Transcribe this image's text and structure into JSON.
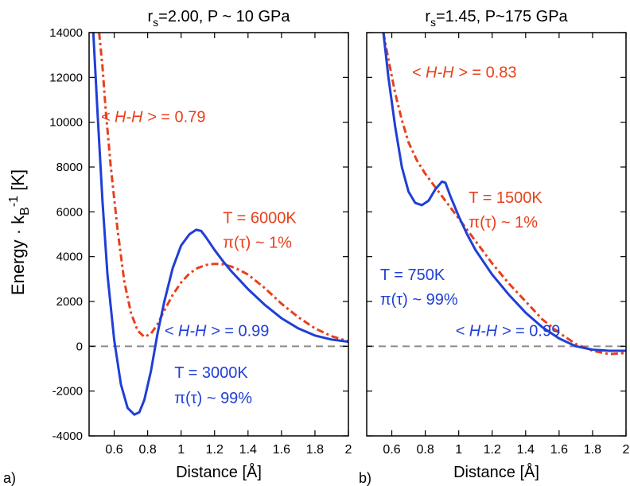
{
  "figure": {
    "ylabel": "Energy · kB-1 [K]",
    "hline_color": "#8a8a8a",
    "red": "#e8401c",
    "blue": "#1f3fd6"
  },
  "chart_data": [
    {
      "type": "line",
      "panel_label": "a)",
      "title_parts": [
        "r",
        "s",
        "=2.00, P ~ 10 GPa"
      ],
      "xlabel": "Distance [Å]",
      "xlim": [
        0.45,
        2.0
      ],
      "ylim": [
        -4000,
        14000
      ],
      "xticks": [
        0.6,
        0.8,
        1,
        1.2,
        1.4,
        1.6,
        1.8,
        2
      ],
      "xtick_labels": [
        "0.6",
        "0.8",
        "1",
        "1.2",
        "1.4",
        "1.6",
        "1.8",
        "2"
      ],
      "yticks": [
        -4000,
        -2000,
        0,
        2000,
        4000,
        6000,
        8000,
        10000,
        12000,
        14000
      ],
      "ytick_labels": [
        "-4000",
        "-2000",
        "0",
        "2000",
        "4000",
        "6000",
        "8000",
        "10000",
        "12000",
        "14000"
      ],
      "grid": false,
      "series": [
        {
          "style": "dash-dot",
          "color": "#e8401c",
          "x": [
            0.51,
            0.53,
            0.55,
            0.58,
            0.62,
            0.66,
            0.7,
            0.74,
            0.78,
            0.82,
            0.86,
            0.9,
            0.95,
            1.0,
            1.05,
            1.1,
            1.15,
            1.2,
            1.25,
            1.3,
            1.35,
            1.4,
            1.5,
            1.6,
            1.7,
            1.8,
            1.9,
            2.0
          ],
          "y": [
            14000,
            12500,
            10500,
            8000,
            5200,
            2900,
            1500,
            700,
            420,
            560,
            1000,
            1600,
            2300,
            2850,
            3250,
            3500,
            3630,
            3680,
            3660,
            3560,
            3400,
            3200,
            2600,
            1900,
            1300,
            800,
            450,
            220
          ]
        },
        {
          "style": "solid",
          "color": "#1f3fd6",
          "x": [
            0.475,
            0.5,
            0.53,
            0.56,
            0.6,
            0.64,
            0.68,
            0.72,
            0.75,
            0.78,
            0.82,
            0.86,
            0.9,
            0.95,
            1.0,
            1.05,
            1.09,
            1.12,
            1.15,
            1.2,
            1.25,
            1.3,
            1.35,
            1.4,
            1.5,
            1.6,
            1.7,
            1.8,
            1.9,
            2.0
          ],
          "y": [
            14000,
            10500,
            6500,
            3200,
            300,
            -1700,
            -2750,
            -3050,
            -2950,
            -2400,
            -1100,
            600,
            2000,
            3500,
            4500,
            5000,
            5200,
            5150,
            4850,
            4300,
            3800,
            3350,
            2950,
            2550,
            1850,
            1250,
            800,
            480,
            300,
            200
          ]
        }
      ],
      "annotations": [
        {
          "text": "< H-H > = 0.79",
          "color": "#e8401c",
          "x": 0.52,
          "y": 10000,
          "italic_part": "H-H"
        },
        {
          "text": "T = 6000K",
          "color": "#e8401c",
          "x": 1.25,
          "y": 5500
        },
        {
          "text": "π(τ) ~ 1%",
          "color": "#e8401c",
          "x": 1.25,
          "y": 4400
        },
        {
          "text": "< H-H > = 0.99",
          "color": "#1f3fd6",
          "x": 0.9,
          "y": 450,
          "italic_part": "H-H"
        },
        {
          "text": "T = 3000K",
          "color": "#1f3fd6",
          "x": 0.96,
          "y": -1400
        },
        {
          "text": "π(τ) ~ 99%",
          "color": "#1f3fd6",
          "x": 0.96,
          "y": -2550
        }
      ]
    },
    {
      "type": "line",
      "panel_label": "b)",
      "title_parts": [
        "r",
        "s",
        "=1.45, P~175 GPa"
      ],
      "xlabel": "Distance [Å]",
      "xlim": [
        0.45,
        2.0
      ],
      "ylim": [
        -4000,
        14000
      ],
      "xticks": [
        0.6,
        0.8,
        1,
        1.2,
        1.4,
        1.6,
        1.8,
        2
      ],
      "xtick_labels": [
        "0.6",
        "0.8",
        "1",
        "1.2",
        "1.4",
        "1.6",
        "1.8",
        "2"
      ],
      "yticks": [
        -4000,
        -2000,
        0,
        2000,
        4000,
        6000,
        8000,
        10000,
        12000,
        14000
      ],
      "ytick_labels": [],
      "grid": false,
      "series": [
        {
          "style": "dash-dot",
          "color": "#e8401c",
          "x": [
            0.55,
            0.58,
            0.62,
            0.66,
            0.7,
            0.75,
            0.8,
            0.85,
            0.9,
            0.95,
            1.0,
            1.05,
            1.1,
            1.15,
            1.2,
            1.3,
            1.4,
            1.5,
            1.6,
            1.7,
            1.8,
            1.9,
            2.0
          ],
          "y": [
            14000,
            12800,
            11300,
            10100,
            9100,
            8300,
            7700,
            7200,
            6700,
            6200,
            5700,
            5200,
            4700,
            4200,
            3700,
            2800,
            2000,
            1200,
            600,
            100,
            -200,
            -350,
            -300
          ]
        },
        {
          "style": "solid",
          "color": "#1f3fd6",
          "x": [
            0.55,
            0.58,
            0.62,
            0.66,
            0.7,
            0.74,
            0.78,
            0.82,
            0.86,
            0.9,
            0.92,
            0.95,
            1.0,
            1.05,
            1.1,
            1.2,
            1.3,
            1.4,
            1.5,
            1.6,
            1.7,
            1.8,
            1.9,
            2.0
          ],
          "y": [
            14000,
            12000,
            9800,
            8000,
            6900,
            6400,
            6300,
            6500,
            7000,
            7350,
            7300,
            6700,
            5800,
            5000,
            4300,
            3200,
            2300,
            1500,
            850,
            350,
            0,
            -150,
            -200,
            -200
          ]
        }
      ],
      "annotations": [
        {
          "text": "< H-H > = 0.83",
          "color": "#e8401c",
          "x": 0.72,
          "y": 12000,
          "italic_part": "H-H"
        },
        {
          "text": "T = 1500K",
          "color": "#e8401c",
          "x": 1.06,
          "y": 6400
        },
        {
          "text": "π(τ) ~ 1%",
          "color": "#e8401c",
          "x": 1.06,
          "y": 5300
        },
        {
          "text": "T = 750K",
          "color": "#1f3fd6",
          "x": 0.53,
          "y": 2950
        },
        {
          "text": "π(τ) ~ 99%",
          "color": "#1f3fd6",
          "x": 0.53,
          "y": 1850
        },
        {
          "text": "< H-H > = 0.99",
          "color": "#1f3fd6",
          "x": 0.98,
          "y": 450,
          "italic_part": "H-H"
        }
      ]
    }
  ]
}
